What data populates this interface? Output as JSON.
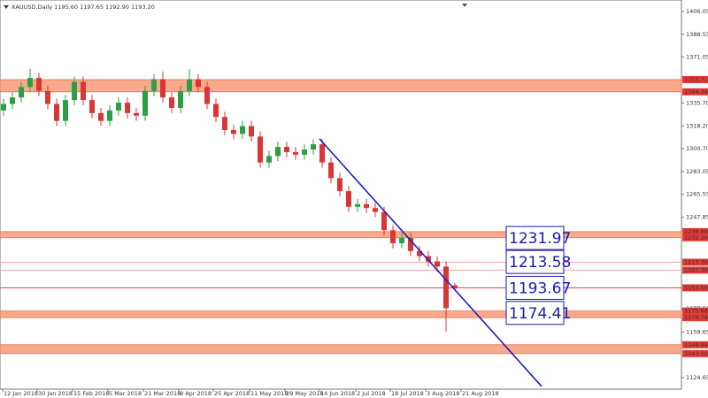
{
  "chart_data": {
    "type": "candlestick",
    "title": "XAUUSD,Daily  1195.60 1197.65 1192.90 1193.20",
    "open": [
      1330,
      1335,
      1340,
      1348,
      1355,
      1345,
      1335,
      1322,
      1338,
      1352,
      1338,
      1328,
      1322,
      1330,
      1336,
      1328,
      1326,
      1345,
      1354,
      1340,
      1332,
      1345,
      1354,
      1348,
      1335,
      1325,
      1315,
      1312,
      1318,
      1310,
      1290,
      1295,
      1302,
      1298,
      1296,
      1300,
      1304,
      1290,
      1278,
      1268,
      1256,
      1258,
      1255,
      1252,
      1238,
      1228,
      1232,
      1222,
      1218,
      1214,
      1210,
      1195.6
    ],
    "high": [
      1339,
      1344,
      1352,
      1362,
      1359,
      1349,
      1339,
      1342,
      1356,
      1356,
      1342,
      1332,
      1334,
      1340,
      1340,
      1332,
      1349,
      1358,
      1360,
      1344,
      1349,
      1362,
      1358,
      1352,
      1339,
      1329,
      1319,
      1322,
      1322,
      1314,
      1299,
      1306,
      1306,
      1302,
      1304,
      1308,
      1308,
      1294,
      1282,
      1272,
      1262,
      1262,
      1259,
      1256,
      1242,
      1236,
      1236,
      1226,
      1222,
      1218,
      1214,
      1197.65
    ],
    "low": [
      1326,
      1331,
      1336,
      1344,
      1341,
      1331,
      1318,
      1318,
      1334,
      1334,
      1324,
      1318,
      1318,
      1326,
      1324,
      1322,
      1322,
      1341,
      1336,
      1328,
      1328,
      1341,
      1344,
      1331,
      1321,
      1311,
      1308,
      1308,
      1306,
      1286,
      1286,
      1291,
      1294,
      1292,
      1292,
      1296,
      1286,
      1274,
      1264,
      1252,
      1252,
      1251,
      1248,
      1234,
      1224,
      1224,
      1218,
      1214,
      1210,
      1206,
      1160,
      1192.9
    ],
    "close": [
      1335,
      1340,
      1348,
      1355,
      1345,
      1335,
      1322,
      1338,
      1352,
      1338,
      1328,
      1322,
      1330,
      1336,
      1328,
      1326,
      1345,
      1354,
      1340,
      1332,
      1345,
      1354,
      1348,
      1335,
      1325,
      1315,
      1312,
      1318,
      1310,
      1290,
      1295,
      1302,
      1298,
      1296,
      1300,
      1304,
      1290,
      1278,
      1268,
      1256,
      1258,
      1255,
      1252,
      1238,
      1228,
      1232,
      1222,
      1218,
      1214,
      1210,
      1178,
      1193.2
    ],
    "up_color": "#2e9e44",
    "down_color": "#d93636",
    "xlim": [
      -0.4,
      76.6
    ],
    "xticks": [
      {
        "value": -0.1,
        "label": "12 Jan 2018"
      },
      {
        "value": 3.8,
        "label": "30 Jan 2018"
      },
      {
        "value": 7.8,
        "label": "15 Feb 2018"
      },
      {
        "value": 11.8,
        "label": "5 Mar 2018"
      },
      {
        "value": 15.8,
        "label": "21 Mar 2018"
      },
      {
        "value": 19.8,
        "label": "9 Apr 2018"
      },
      {
        "value": 23.7,
        "label": "25 Apr 2018"
      },
      {
        "value": 27.8,
        "label": "11 May 2018"
      },
      {
        "value": 31.8,
        "label": "29 May 2018"
      },
      {
        "value": 35.7,
        "label": "14 Jun 2018"
      },
      {
        "value": 39.8,
        "label": "2 Jul 2018"
      },
      {
        "value": 43.7,
        "label": "18 Jul 2018"
      },
      {
        "value": 47.7,
        "label": "3 Aug 2018"
      },
      {
        "value": 51.7,
        "label": "21 Aug 2018"
      }
    ],
    "ylim": [
      1115.8,
      1414.9
    ],
    "yticks": [
      1406.05,
      1388.55,
      1371.05,
      {
        "value": 1335.7,
        "label": "1335.70"
      },
      {
        "value": 1318.2,
        "label": "1318.20"
      },
      {
        "value": 1300.7,
        "label": "1300.70"
      },
      1283.05,
      1265.55,
      1247.85,
      {
        "value": 1177.5,
        "label": "1177.50"
      },
      1159.65,
      1124.65
    ],
    "zones": [
      [
        1353.71,
        1344.34
      ],
      [
        1236.88,
        {
          "value": 1232.2,
          "label": "1232.20"
        }
      ],
      [
        1175.86,
        1170.76
      ],
      [
        1149.94,
        1143.12
      ]
    ],
    "levels": [
      1213.36,
      {
        "value": 1207.3,
        "label": "1207.30"
      },
      1193.68
    ],
    "annotations": [
      1231.97,
      1213.58,
      1193.67,
      1174.41
    ],
    "trendline": {
      "x": [
        35.7,
        60.8
      ],
      "y": [
        1308.2,
        1117.9
      ],
      "color": "#1f1fbf"
    }
  }
}
